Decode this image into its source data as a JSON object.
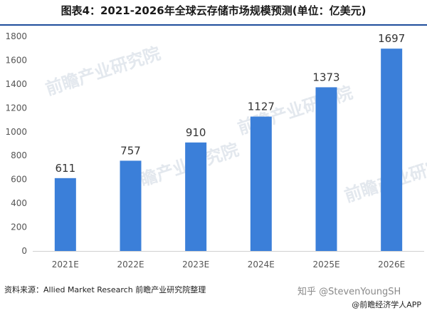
{
  "title": "图表4：2021-2026年全球云存储市场规模预测(单位：亿美元)",
  "source": "资料来源：Allied Market Research 前瞻产业研究院整理",
  "watermark_zhihu": "知乎 @StevenYoungSH",
  "watermark_app": "@前瞻经济学人APP",
  "watermark_logo": "前瞻产业研究院",
  "colors": {
    "bar": "#3b7fd9",
    "axis_text": "#555555",
    "label": "#333333"
  },
  "chart_data": {
    "type": "bar",
    "title": "图表4：2021-2026年全球云存储市场规模预测(单位：亿美元)",
    "categories": [
      "2021E",
      "2022E",
      "2023E",
      "2024E",
      "2025E",
      "2026E"
    ],
    "values": [
      611,
      757,
      910,
      1127,
      1373,
      1697
    ],
    "data_labels": [
      "611",
      "757",
      "910",
      "1127",
      "1373",
      "1697"
    ],
    "ylim": [
      0,
      1800
    ],
    "yticks": [
      "0",
      "200",
      "400",
      "600",
      "800",
      "1000",
      "1200",
      "1400",
      "1600",
      "1800"
    ],
    "grid": false,
    "xlabel": "",
    "ylabel": ""
  }
}
